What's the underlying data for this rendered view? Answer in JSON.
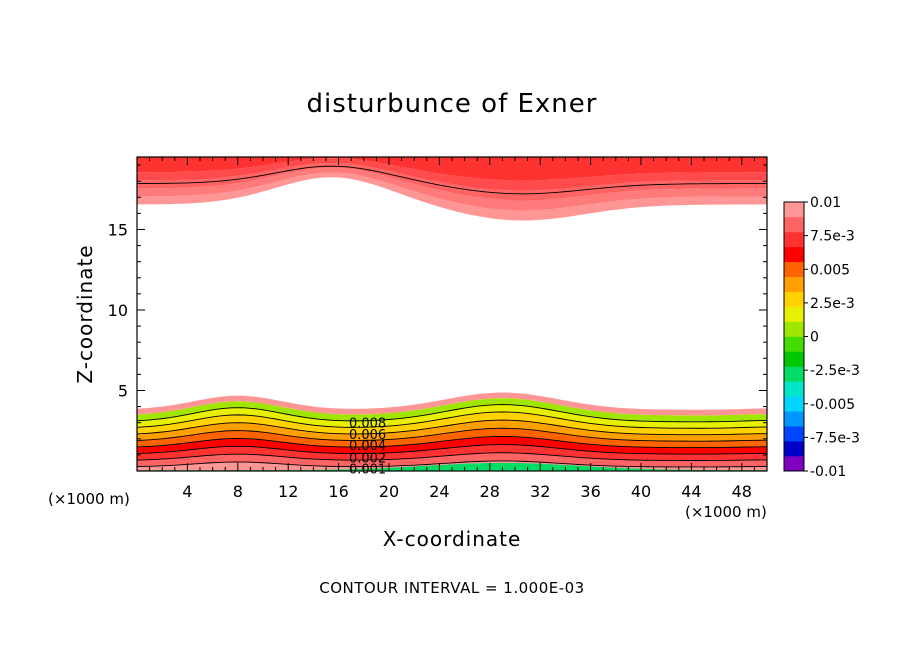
{
  "chart_data": {
    "type": "contour",
    "title": "disturbunce of Exner",
    "xlabel": "X-coordinate",
    "ylabel": "Z-coordinate",
    "x_unit_label": "(×1000 m)",
    "x_unit_label_right": "(×1000 m)",
    "footer": "CONTOUR INTERVAL = 1.000E-03",
    "xlim": [
      0,
      50
    ],
    "ylim": [
      0,
      19.5
    ],
    "x_ticks": [
      "4",
      "8",
      "12",
      "16",
      "20",
      "24",
      "28",
      "32",
      "36",
      "40",
      "44",
      "48"
    ],
    "x_tick_values": [
      4,
      8,
      12,
      16,
      20,
      24,
      28,
      32,
      36,
      40,
      44,
      48
    ],
    "y_ticks": [
      "5",
      "10",
      "15"
    ],
    "y_tick_values": [
      5,
      10,
      15
    ],
    "contour_interval": 0.001,
    "contour_labels": [
      "0.008",
      "0.006",
      "0.004",
      "0.002",
      "0.001"
    ],
    "contour_label_values": [
      0.008,
      0.006,
      0.004,
      0.002,
      0.001
    ],
    "colorbar": {
      "labels": [
        "0.01",
        "7.5e-3",
        "0.005",
        "2.5e-3",
        "0",
        "-2.5e-3",
        "-0.005",
        "-7.5e-3",
        "-0.01"
      ],
      "range": [
        -0.01,
        0.01
      ],
      "colors": [
        "#7f00bf",
        "#0000c8",
        "#0045ff",
        "#0095ff",
        "#00d4ff",
        "#00e6c8",
        "#00dc64",
        "#00c800",
        "#46dc00",
        "#a0e600",
        "#e6f000",
        "#ffd200",
        "#ffa000",
        "#ff6400",
        "#ff0000",
        "#ff3232",
        "#ff6464",
        "#ff9696"
      ]
    }
  }
}
